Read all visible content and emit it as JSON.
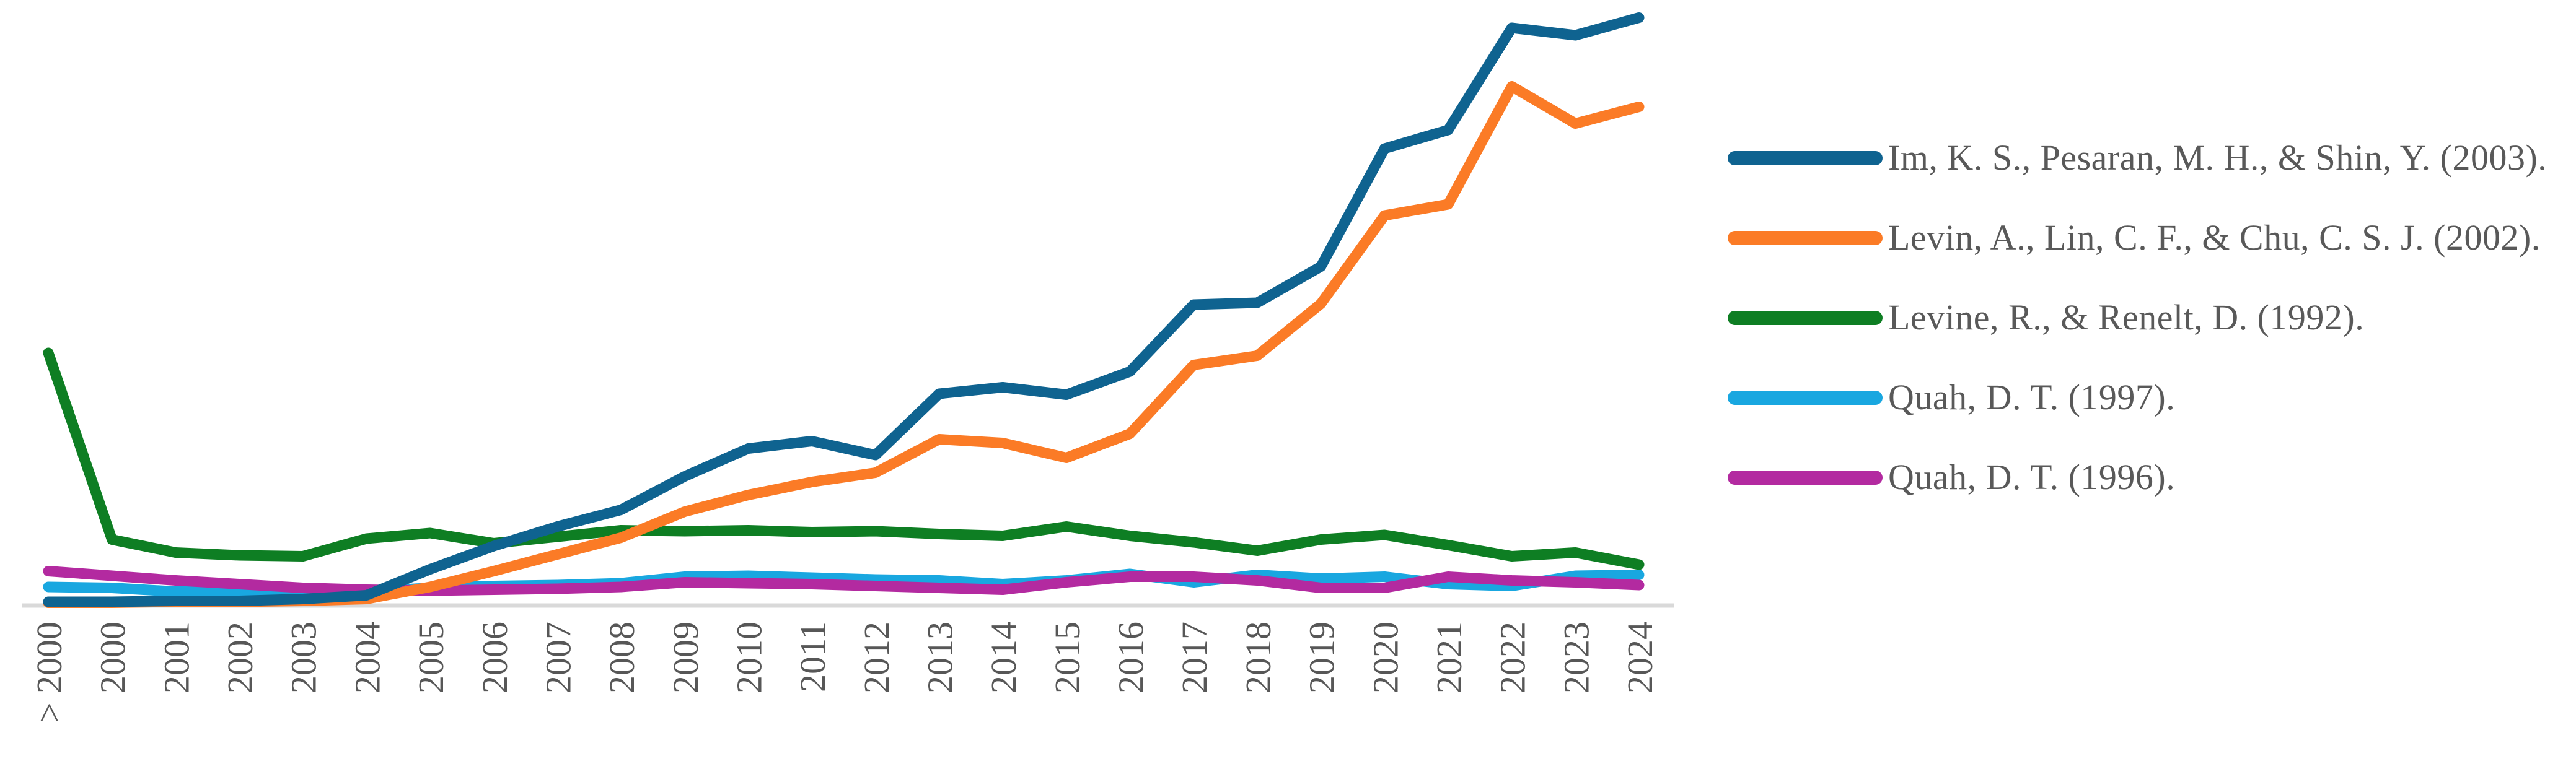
{
  "chart_data": {
    "type": "line",
    "title": "",
    "xlabel": "",
    "ylabel": "",
    "y_axis_visible": false,
    "ylim": [
      0,
      660
    ],
    "grid": false,
    "legend_position": "right",
    "axis_color": "#d9d9d9",
    "label_color": "#575757",
    "categories": [
      "> 2000",
      "2000",
      "2001",
      "2002",
      "2003",
      "2004",
      "2005",
      "2006",
      "2007",
      "2008",
      "2009",
      "2010",
      "2011",
      "2012",
      "2013",
      "2014",
      "2015",
      "2016",
      "2017",
      "2018",
      "2019",
      "2020",
      "2021",
      "2022",
      "2023",
      "2024"
    ],
    "series": [
      {
        "name": "Im, K. S., Pesaran, M. H., & Shin, Y. (2003).",
        "color": "#0f6390",
        "values": [
          4,
          4,
          5,
          5,
          7,
          11,
          39,
          64,
          85,
          103,
          139,
          169,
          177,
          162,
          228,
          235,
          227,
          252,
          324,
          326,
          365,
          492,
          512,
          622,
          614,
          633
        ]
      },
      {
        "name": "Levin, A., Lin, C. F., & Chu, C. S. J. (2002).",
        "color": "#fb7b26",
        "values": [
          3,
          3,
          4,
          4,
          5,
          7,
          20,
          37,
          55,
          73,
          101,
          119,
          133,
          143,
          179,
          175,
          159,
          185,
          259,
          269,
          325,
          420,
          432,
          559,
          519,
          537
        ]
      },
      {
        "name": "Levine, R., & Renelt, D. (1992).",
        "color": "#0e7e23",
        "values": [
          272,
          71,
          57,
          54,
          53,
          72,
          78,
          67,
          74,
          81,
          80,
          81,
          79,
          80,
          77,
          75,
          85,
          75,
          68,
          59,
          71,
          76,
          65,
          53,
          57,
          44
        ]
      },
      {
        "name": "Quah, D. T. (1997).",
        "color": "#19a7e0",
        "values": [
          20,
          19,
          15,
          15,
          14,
          15,
          19,
          21,
          22,
          24,
          31,
          32,
          30,
          28,
          27,
          23,
          27,
          34,
          25,
          33,
          29,
          31,
          23,
          21,
          32,
          33
        ]
      },
      {
        "name": "Quah, D. T. (1996).",
        "color": "#b32aa0",
        "values": [
          37,
          32,
          27,
          23,
          19,
          17,
          16,
          17,
          18,
          20,
          25,
          24,
          23,
          21,
          19,
          17,
          25,
          31,
          31,
          27,
          19,
          19,
          31,
          27,
          25,
          22
        ]
      }
    ]
  }
}
